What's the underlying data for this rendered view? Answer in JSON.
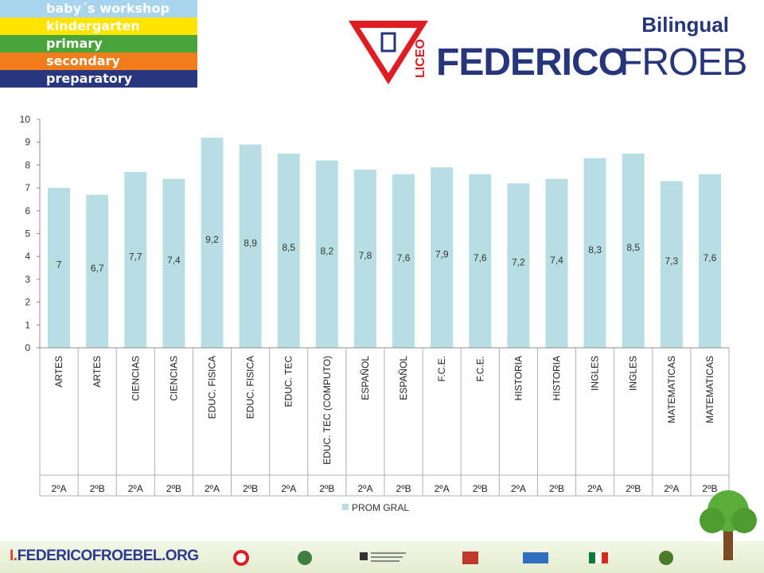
{
  "levels": [
    {
      "label": "baby´s workshop",
      "color": "#a8d4ee",
      "text_color": "#ffffff"
    },
    {
      "label": "kindergarten",
      "color": "#ffe400",
      "text_color": "#ffffff"
    },
    {
      "label": "primary",
      "color": "#4aa43c",
      "text_color": "#ffffff"
    },
    {
      "label": "secondary",
      "color": "#f07d1a",
      "text_color": "#ffffff"
    },
    {
      "label": "preparatory",
      "color": "#28357f",
      "text_color": "#ffffff"
    }
  ],
  "logo": {
    "bilingual": "Bilingual",
    "liceo": "LICEO",
    "federico": "FEDERICO",
    "froebel": "FROEBEL",
    "brand_red": "#e11b22",
    "brand_blue": "#27357b"
  },
  "footer": {
    "url_prefix": "I.",
    "url": "FEDERICOFROEBEL.ORG"
  },
  "chart_data": {
    "type": "bar",
    "categories": [
      {
        "subject": "ARTES",
        "group": "2ºA"
      },
      {
        "subject": "ARTES",
        "group": "2ºB"
      },
      {
        "subject": "CIENCIAS",
        "group": "2ºA"
      },
      {
        "subject": "CIENCIAS",
        "group": "2ºB"
      },
      {
        "subject": "EDUC. FISICA",
        "group": "2ºA"
      },
      {
        "subject": "EDUC. FISICA",
        "group": "2ºB"
      },
      {
        "subject": "EDUC. TEC",
        "group": "2ºA"
      },
      {
        "subject": "EDUC. TEC (COMPUTO)",
        "group": "2ºB"
      },
      {
        "subject": "ESPAÑOL",
        "group": "2ºA"
      },
      {
        "subject": "ESPAÑOL",
        "group": "2ºB"
      },
      {
        "subject": "F.C.E.",
        "group": "2ºA"
      },
      {
        "subject": "F.C.E.",
        "group": "2ºB"
      },
      {
        "subject": "HISTORIA",
        "group": "2ºA"
      },
      {
        "subject": "HISTORIA",
        "group": "2ºB"
      },
      {
        "subject": "INGLES",
        "group": "2ºA"
      },
      {
        "subject": "INGLES",
        "group": "2ºB"
      },
      {
        "subject": "MATEMATICAS",
        "group": "2ºA"
      },
      {
        "subject": "MATEMATICAS",
        "group": "2ºB"
      }
    ],
    "series": [
      {
        "name": "PROM GRAL",
        "color": "#b7dfe3",
        "values": [
          7,
          6.7,
          7.7,
          7.4,
          9.2,
          8.9,
          8.5,
          8.2,
          7.8,
          7.6,
          7.9,
          7.6,
          7.2,
          7.4,
          8.3,
          8.5,
          7.3,
          7.6
        ],
        "value_labels": [
          "7",
          "6,7",
          "7,7",
          "7,4",
          "9,2",
          "8,9",
          "8,5",
          "8,2",
          "7,8",
          "7,6",
          "7,9",
          "7,6",
          "7,2",
          "7,4",
          "8,3",
          "8,5",
          "7,3",
          "7,6"
        ]
      }
    ],
    "ylim": [
      0,
      10
    ],
    "yticks": [
      "0",
      "1",
      "2",
      "3",
      "4",
      "5",
      "6",
      "7",
      "8",
      "9",
      "10"
    ],
    "grid": false,
    "legend": "bottom-center"
  }
}
